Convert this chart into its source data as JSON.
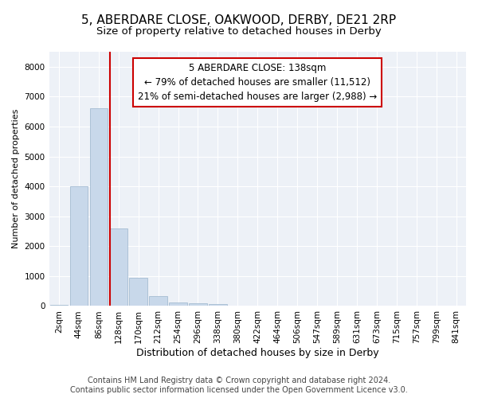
{
  "title": "5, ABERDARE CLOSE, OAKWOOD, DERBY, DE21 2RP",
  "subtitle": "Size of property relative to detached houses in Derby",
  "xlabel": "Distribution of detached houses by size in Derby",
  "ylabel": "Number of detached properties",
  "footer_line1": "Contains HM Land Registry data © Crown copyright and database right 2024.",
  "footer_line2": "Contains public sector information licensed under the Open Government Licence v3.0.",
  "bar_color": "#c8d8ea",
  "bar_edge_color": "#9ab4cc",
  "vline_color": "#cc0000",
  "annotation_text": "5 ABERDARE CLOSE: 138sqm\n← 79% of detached houses are smaller (11,512)\n21% of semi-detached houses are larger (2,988) →",
  "annotation_box_color": "#ffffff",
  "annotation_box_edge": "#cc0000",
  "categories": [
    "2sqm",
    "44sqm",
    "86sqm",
    "128sqm",
    "170sqm",
    "212sqm",
    "254sqm",
    "296sqm",
    "338sqm",
    "380sqm",
    "422sqm",
    "464sqm",
    "506sqm",
    "547sqm",
    "589sqm",
    "631sqm",
    "673sqm",
    "715sqm",
    "757sqm",
    "799sqm",
    "841sqm"
  ],
  "values": [
    50,
    4000,
    6600,
    2600,
    950,
    330,
    130,
    100,
    60,
    0,
    0,
    0,
    0,
    0,
    0,
    0,
    0,
    0,
    0,
    0,
    0
  ],
  "ylim": [
    0,
    8500
  ],
  "yticks": [
    0,
    1000,
    2000,
    3000,
    4000,
    5000,
    6000,
    7000,
    8000
  ],
  "background_color": "#ffffff",
  "plot_bg_color": "#edf1f7",
  "grid_color": "#ffffff",
  "title_fontsize": 11,
  "subtitle_fontsize": 9.5,
  "axis_label_fontsize": 9,
  "ylabel_fontsize": 8,
  "tick_fontsize": 7.5,
  "footer_fontsize": 7,
  "annotation_fontsize": 8.5
}
